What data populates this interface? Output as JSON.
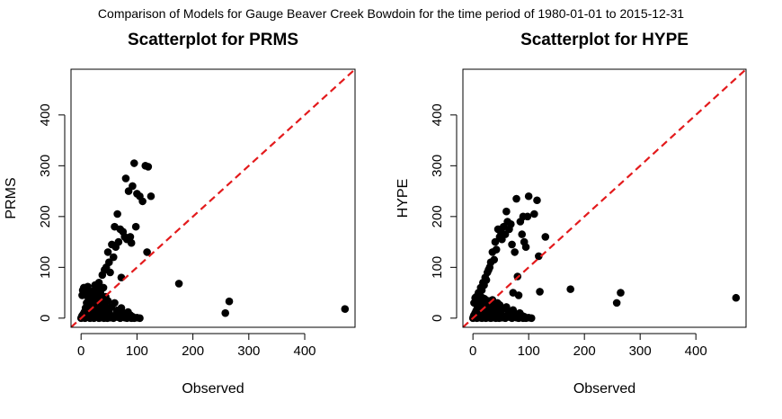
{
  "figure": {
    "suptitle": "Comparison of Models for Gauge Beaver Creek Bowdoin for the time period of 1980-01-01 to 2015-12-31"
  },
  "colors": {
    "points": "#000000",
    "reference_line": "#e31a1c",
    "frame": "#000000"
  },
  "chart_data": [
    {
      "type": "scatter",
      "title": "Scatterplot for PRMS",
      "xlabel": "Observed",
      "ylabel": "PRMS",
      "xlim": [
        -18,
        490
      ],
      "ylim": [
        -18,
        490
      ],
      "xticks": [
        0,
        100,
        200,
        300,
        400
      ],
      "yticks": [
        0,
        100,
        200,
        300,
        400
      ],
      "x_tick_labels": [
        "0",
        "100",
        "200",
        "300",
        "400"
      ],
      "y_tick_labels": [
        "0",
        "100",
        "200",
        "300",
        "400"
      ],
      "reference_line": "y = x (red dashed)",
      "grid": false,
      "points": [
        [
          0,
          0
        ],
        [
          1,
          2
        ],
        [
          2,
          5
        ],
        [
          3,
          1
        ],
        [
          4,
          8
        ],
        [
          5,
          3
        ],
        [
          6,
          12
        ],
        [
          7,
          0
        ],
        [
          8,
          20
        ],
        [
          9,
          6
        ],
        [
          10,
          30
        ],
        [
          11,
          2
        ],
        [
          12,
          15
        ],
        [
          13,
          40
        ],
        [
          14,
          5
        ],
        [
          15,
          25
        ],
        [
          16,
          0
        ],
        [
          17,
          50
        ],
        [
          18,
          10
        ],
        [
          19,
          35
        ],
        [
          20,
          3
        ],
        [
          21,
          45
        ],
        [
          22,
          18
        ],
        [
          23,
          0
        ],
        [
          24,
          55
        ],
        [
          25,
          8
        ],
        [
          26,
          28
        ],
        [
          27,
          2
        ],
        [
          28,
          60
        ],
        [
          29,
          14
        ],
        [
          30,
          4
        ],
        [
          31,
          38
        ],
        [
          32,
          0
        ],
        [
          33,
          22
        ],
        [
          34,
          6
        ],
        [
          35,
          48
        ],
        [
          36,
          1
        ],
        [
          37,
          16
        ],
        [
          38,
          30
        ],
        [
          39,
          3
        ],
        [
          40,
          10
        ],
        [
          41,
          0
        ],
        [
          42,
          26
        ],
        [
          43,
          7
        ],
        [
          44,
          42
        ],
        [
          45,
          2
        ],
        [
          46,
          18
        ],
        [
          47,
          0
        ],
        [
          48,
          34
        ],
        [
          49,
          5
        ],
        [
          50,
          12
        ],
        [
          52,
          1
        ],
        [
          54,
          22
        ],
        [
          56,
          4
        ],
        [
          58,
          0
        ],
        [
          60,
          30
        ],
        [
          62,
          6
        ],
        [
          64,
          15
        ],
        [
          66,
          2
        ],
        [
          68,
          8
        ],
        [
          70,
          0
        ],
        [
          72,
          20
        ],
        [
          74,
          3
        ],
        [
          76,
          10
        ],
        [
          78,
          1
        ],
        [
          80,
          5
        ],
        [
          82,
          0
        ],
        [
          84,
          12
        ],
        [
          86,
          2
        ],
        [
          88,
          6
        ],
        [
          90,
          0
        ],
        [
          92,
          3
        ],
        [
          95,
          0
        ],
        [
          100,
          1
        ],
        [
          105,
          0
        ],
        [
          2,
          45
        ],
        [
          3,
          55
        ],
        [
          5,
          60
        ],
        [
          7,
          50
        ],
        [
          9,
          58
        ],
        [
          12,
          62
        ],
        [
          15,
          48
        ],
        [
          18,
          52
        ],
        [
          22,
          40
        ],
        [
          25,
          65
        ],
        [
          28,
          45
        ],
        [
          32,
          70
        ],
        [
          35,
          55
        ],
        [
          38,
          85
        ],
        [
          40,
          60
        ],
        [
          42,
          95
        ],
        [
          45,
          100
        ],
        [
          48,
          130
        ],
        [
          50,
          110
        ],
        [
          52,
          90
        ],
        [
          55,
          145
        ],
        [
          58,
          120
        ],
        [
          60,
          180
        ],
        [
          62,
          140
        ],
        [
          65,
          205
        ],
        [
          67,
          150
        ],
        [
          70,
          175
        ],
        [
          72,
          80
        ],
        [
          75,
          170
        ],
        [
          78,
          160
        ],
        [
          80,
          275
        ],
        [
          82,
          155
        ],
        [
          85,
          250
        ],
        [
          88,
          160
        ],
        [
          90,
          148
        ],
        [
          92,
          260
        ],
        [
          95,
          305
        ],
        [
          98,
          180
        ],
        [
          100,
          245
        ],
        [
          105,
          240
        ],
        [
          110,
          230
        ],
        [
          115,
          300
        ],
        [
          118,
          130
        ],
        [
          120,
          298
        ],
        [
          125,
          240
        ],
        [
          175,
          68
        ],
        [
          258,
          10
        ],
        [
          265,
          33
        ],
        [
          472,
          18
        ]
      ]
    },
    {
      "type": "scatter",
      "title": "Scatterplot for HYPE",
      "xlabel": "Observed",
      "ylabel": "HYPE",
      "xlim": [
        -18,
        490
      ],
      "ylim": [
        -18,
        490
      ],
      "xticks": [
        0,
        100,
        200,
        300,
        400
      ],
      "yticks": [
        0,
        100,
        200,
        300,
        400
      ],
      "x_tick_labels": [
        "0",
        "100",
        "200",
        "300",
        "400"
      ],
      "y_tick_labels": [
        "0",
        "100",
        "200",
        "300",
        "400"
      ],
      "reference_line": "y = x (red dashed)",
      "grid": false,
      "points": [
        [
          0,
          0
        ],
        [
          1,
          3
        ],
        [
          2,
          6
        ],
        [
          3,
          1
        ],
        [
          4,
          10
        ],
        [
          5,
          2
        ],
        [
          6,
          15
        ],
        [
          7,
          0
        ],
        [
          8,
          22
        ],
        [
          9,
          5
        ],
        [
          10,
          28
        ],
        [
          11,
          1
        ],
        [
          12,
          12
        ],
        [
          13,
          35
        ],
        [
          14,
          4
        ],
        [
          15,
          20
        ],
        [
          16,
          0
        ],
        [
          17,
          40
        ],
        [
          18,
          8
        ],
        [
          19,
          30
        ],
        [
          20,
          2
        ],
        [
          21,
          38
        ],
        [
          22,
          14
        ],
        [
          23,
          0
        ],
        [
          24,
          30
        ],
        [
          25,
          6
        ],
        [
          26,
          22
        ],
        [
          27,
          1
        ],
        [
          28,
          34
        ],
        [
          29,
          10
        ],
        [
          30,
          3
        ],
        [
          31,
          26
        ],
        [
          32,
          0
        ],
        [
          33,
          16
        ],
        [
          34,
          5
        ],
        [
          35,
          36
        ],
        [
          36,
          1
        ],
        [
          37,
          12
        ],
        [
          38,
          24
        ],
        [
          39,
          2
        ],
        [
          40,
          8
        ],
        [
          41,
          0
        ],
        [
          42,
          20
        ],
        [
          43,
          5
        ],
        [
          44,
          30
        ],
        [
          45,
          1
        ],
        [
          46,
          14
        ],
        [
          47,
          0
        ],
        [
          48,
          26
        ],
        [
          49,
          4
        ],
        [
          50,
          10
        ],
        [
          52,
          1
        ],
        [
          54,
          18
        ],
        [
          56,
          3
        ],
        [
          58,
          0
        ],
        [
          60,
          22
        ],
        [
          62,
          5
        ],
        [
          64,
          12
        ],
        [
          66,
          2
        ],
        [
          68,
          6
        ],
        [
          70,
          0
        ],
        [
          72,
          16
        ],
        [
          74,
          2
        ],
        [
          76,
          8
        ],
        [
          78,
          1
        ],
        [
          80,
          4
        ],
        [
          82,
          0
        ],
        [
          84,
          10
        ],
        [
          86,
          2
        ],
        [
          88,
          5
        ],
        [
          90,
          0
        ],
        [
          92,
          3
        ],
        [
          95,
          0
        ],
        [
          100,
          1
        ],
        [
          105,
          0
        ],
        [
          2,
          30
        ],
        [
          4,
          40
        ],
        [
          6,
          42
        ],
        [
          8,
          35
        ],
        [
          10,
          50
        ],
        [
          12,
          45
        ],
        [
          14,
          60
        ],
        [
          16,
          55
        ],
        [
          18,
          70
        ],
        [
          20,
          65
        ],
        [
          22,
          80
        ],
        [
          24,
          75
        ],
        [
          26,
          90
        ],
        [
          28,
          95
        ],
        [
          30,
          100
        ],
        [
          32,
          110
        ],
        [
          35,
          130
        ],
        [
          38,
          115
        ],
        [
          40,
          150
        ],
        [
          42,
          135
        ],
        [
          45,
          175
        ],
        [
          48,
          160
        ],
        [
          50,
          170
        ],
        [
          52,
          155
        ],
        [
          55,
          180
        ],
        [
          58,
          165
        ],
        [
          60,
          210
        ],
        [
          62,
          190
        ],
        [
          65,
          175
        ],
        [
          68,
          185
        ],
        [
          70,
          145
        ],
        [
          72,
          50
        ],
        [
          75,
          130
        ],
        [
          78,
          235
        ],
        [
          80,
          82
        ],
        [
          82,
          45
        ],
        [
          85,
          190
        ],
        [
          88,
          165
        ],
        [
          90,
          200
        ],
        [
          92,
          150
        ],
        [
          95,
          140
        ],
        [
          98,
          200
        ],
        [
          100,
          240
        ],
        [
          110,
          205
        ],
        [
          115,
          232
        ],
        [
          118,
          122
        ],
        [
          120,
          52
        ],
        [
          130,
          160
        ],
        [
          175,
          57
        ],
        [
          258,
          30
        ],
        [
          265,
          50
        ],
        [
          472,
          40
        ]
      ]
    }
  ]
}
